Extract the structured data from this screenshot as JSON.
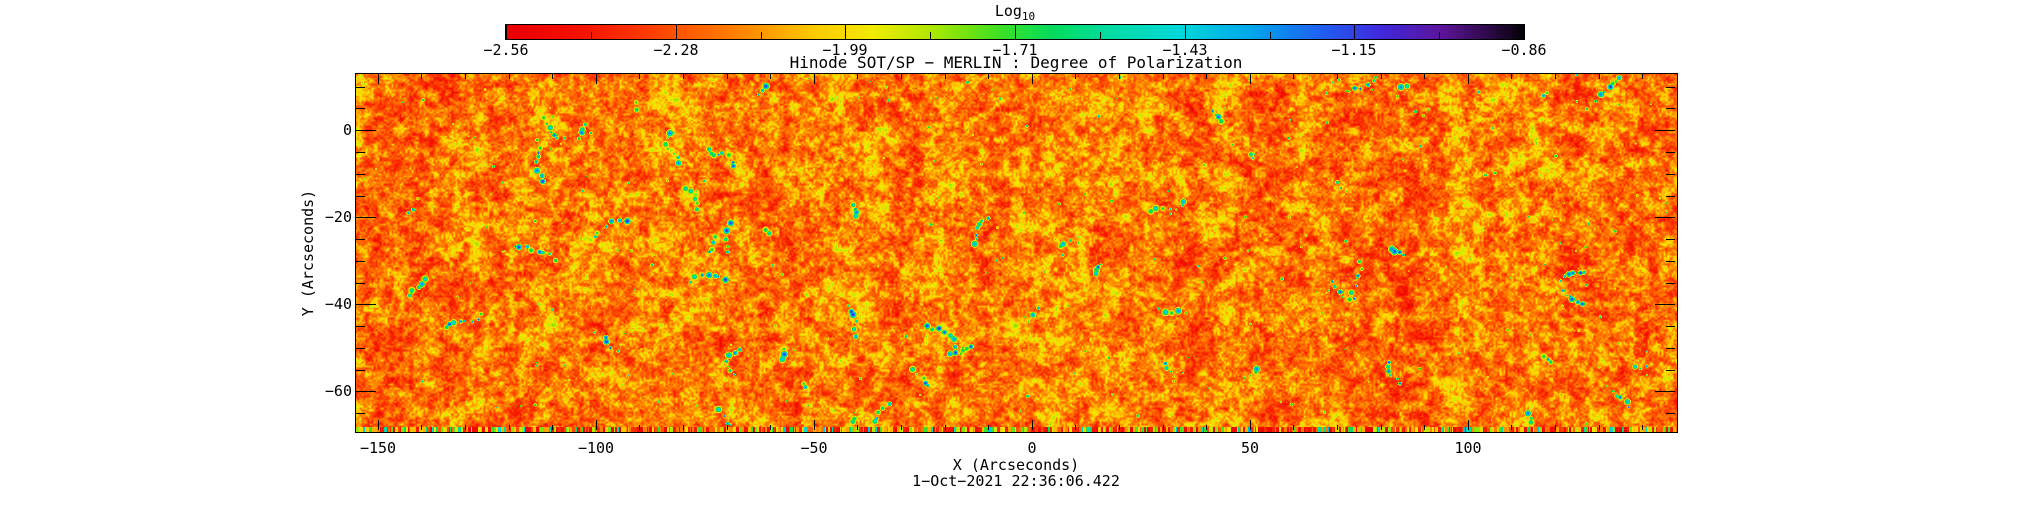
{
  "app": {
    "background": "#ffffff",
    "axis_color": "#000000",
    "text_color": "#000000"
  },
  "chart_data": {
    "type": "heatmap",
    "title": "Hinode SOT/SP − MERLIN : Degree of Polarization",
    "xlabel": "X (Arcseconds)",
    "ylabel": "Y (Arcseconds)",
    "caption": "1−Oct−2021 22:36:06.422",
    "xlim": [
      -155,
      148
    ],
    "ylim": [
      -69.3,
      12.9
    ],
    "x_major_ticks": {
      "values": [
        -150,
        -100,
        -50,
        0,
        50,
        100
      ],
      "labels": [
        "−150",
        "−100",
        "−50",
        "0",
        "50",
        "100"
      ]
    },
    "y_major_ticks": {
      "values": [
        0,
        -20,
        -40,
        -60
      ],
      "labels": [
        "0",
        "−20",
        "−40",
        "−60"
      ]
    },
    "x_minor_step": 10,
    "y_minor_step": 5,
    "colorbar": {
      "label": "Log",
      "label_sub": "10",
      "range": [
        -2.56,
        -0.86
      ],
      "tick_values": [
        -2.56,
        -2.28,
        -1.99,
        -1.71,
        -1.43,
        -1.15,
        -0.86
      ],
      "tick_labels": [
        "−2.56",
        "−2.28",
        "−1.99",
        "−1.71",
        "−1.43",
        "−1.15",
        "−0.86"
      ]
    },
    "palette": [
      {
        "t": 0.0,
        "c": "#e80000"
      },
      {
        "t": 0.07,
        "c": "#f51000"
      },
      {
        "t": 0.13,
        "c": "#fb3400"
      },
      {
        "t": 0.17,
        "c": "#ff5400"
      },
      {
        "t": 0.24,
        "c": "#ff8c00"
      },
      {
        "t": 0.3,
        "c": "#ffc800"
      },
      {
        "t": 0.36,
        "c": "#f2ea00"
      },
      {
        "t": 0.42,
        "c": "#aae800"
      },
      {
        "t": 0.48,
        "c": "#44e020"
      },
      {
        "t": 0.54,
        "c": "#00dc60"
      },
      {
        "t": 0.6,
        "c": "#00dcaa"
      },
      {
        "t": 0.66,
        "c": "#00d8d8"
      },
      {
        "t": 0.73,
        "c": "#00a8ec"
      },
      {
        "t": 0.8,
        "c": "#2060f0"
      },
      {
        "t": 0.86,
        "c": "#4028dc"
      },
      {
        "t": 0.92,
        "c": "#5c1498"
      },
      {
        "t": 0.97,
        "c": "#280840"
      },
      {
        "t": 1.0,
        "c": "#050108"
      }
    ],
    "texture": {
      "seed": 20211001,
      "chain_count": 55,
      "speck_count": 300,
      "edge_strip_rows": 5
    }
  }
}
